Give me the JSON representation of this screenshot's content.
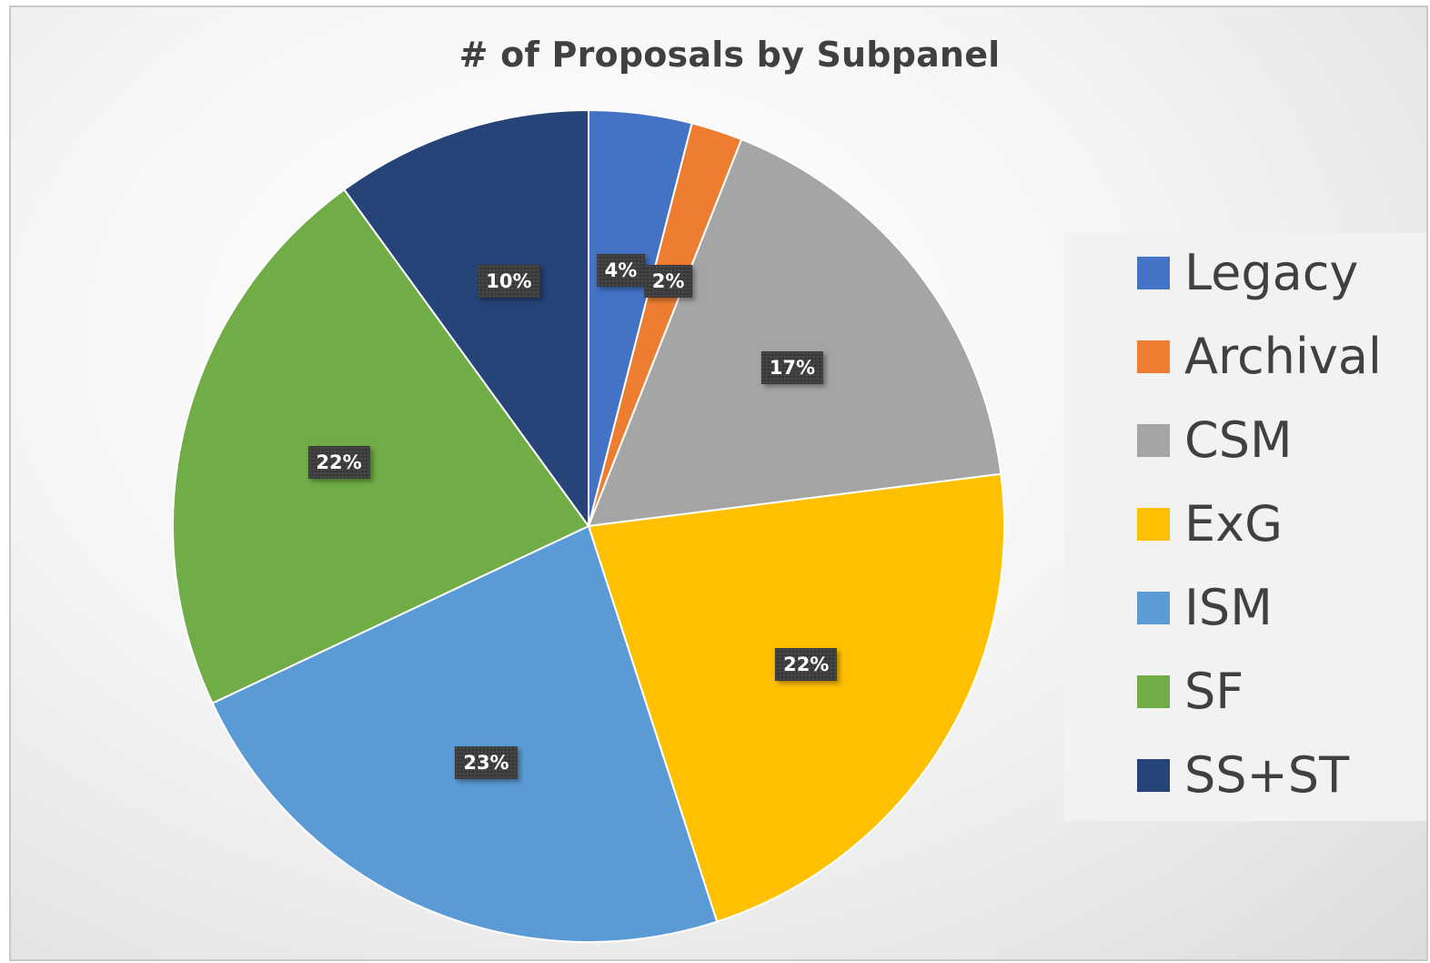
{
  "chart_data": {
    "type": "pie",
    "title": "# of Proposals by Subpanel",
    "series": [
      {
        "values": [
          4,
          2,
          17,
          22,
          23,
          22,
          10
        ]
      }
    ],
    "categories": [
      "Legacy",
      "Archival",
      "CSM",
      "ExG",
      "ISM",
      "SF",
      "SS+ST"
    ],
    "labels": [
      "4%",
      "2%",
      "17%",
      "22%",
      "23%",
      "22%",
      "10%"
    ],
    "colors": [
      "#4472C4",
      "#ED7D31",
      "#A5A5A5",
      "#FFC000",
      "#5B9BD5",
      "#70AD47",
      "#264478"
    ],
    "legend_placement": "right",
    "start_angle": "top",
    "direction": "clockwise"
  }
}
